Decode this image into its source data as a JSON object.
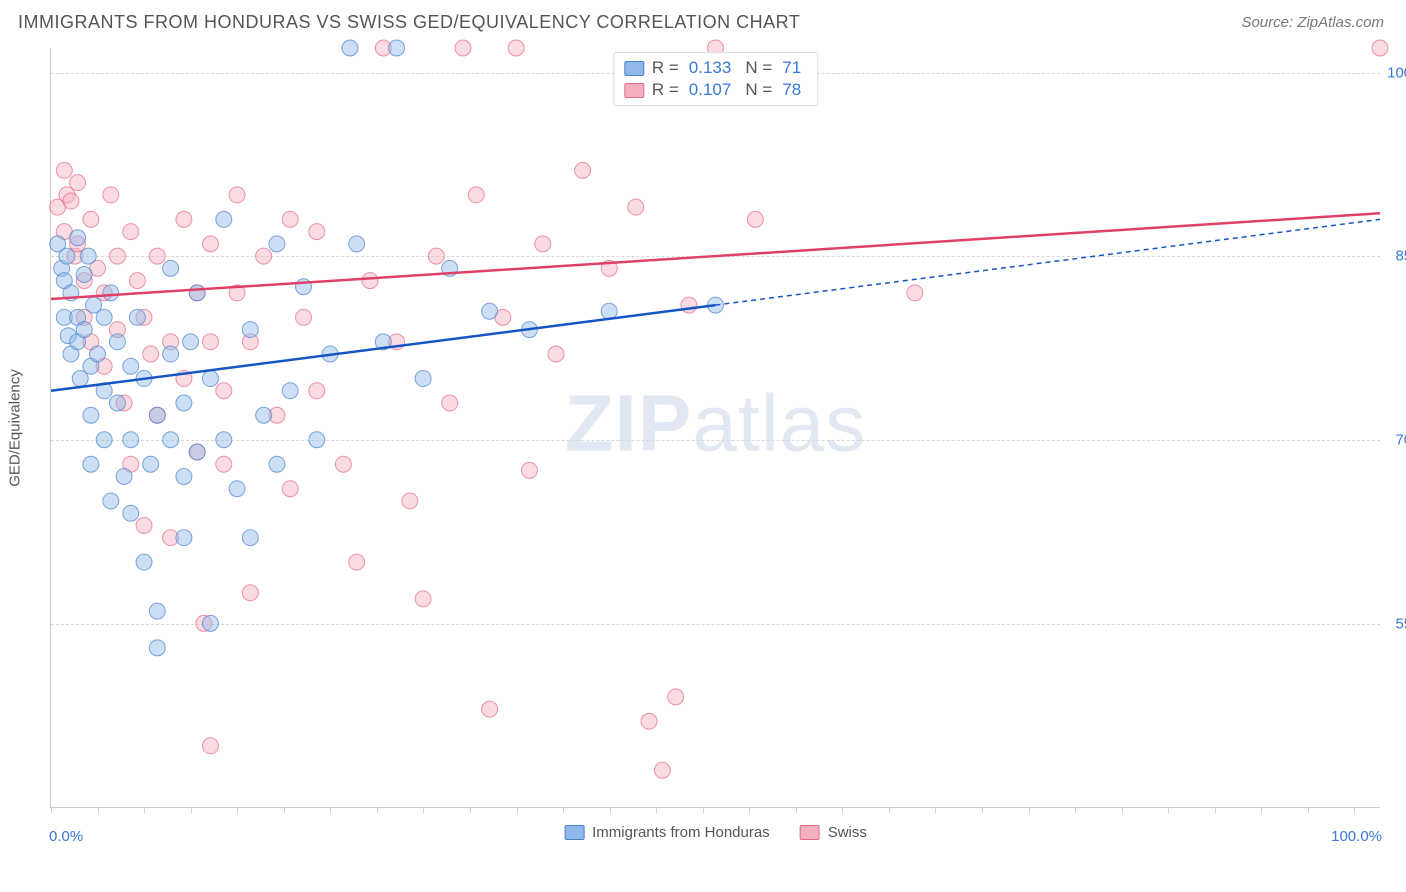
{
  "title": "IMMIGRANTS FROM HONDURAS VS SWISS GED/EQUIVALENCY CORRELATION CHART",
  "source": "Source: ZipAtlas.com",
  "watermark_zip": "ZIP",
  "watermark_atlas": "atlas",
  "yaxis_title": "GED/Equivalency",
  "chart": {
    "type": "scatter",
    "xlim": [
      0,
      100
    ],
    "ylim": [
      40,
      102
    ],
    "yticks": [
      {
        "value": 55,
        "label": "55.0%"
      },
      {
        "value": 70,
        "label": "70.0%"
      },
      {
        "value": 85,
        "label": "85.0%"
      },
      {
        "value": 100,
        "label": "100.0%"
      }
    ],
    "xtick_left": "0.0%",
    "xtick_right": "100.0%",
    "xtick_marks": [
      0,
      3.5,
      7,
      10.5,
      14,
      17.5,
      21,
      24.5,
      28,
      31.5,
      35,
      38.5,
      42,
      45.5,
      49,
      52.5,
      56,
      59.5,
      63,
      66.5,
      70,
      73.5,
      77,
      80.5,
      84,
      87.5,
      91,
      94.5,
      98
    ],
    "background_color": "#ffffff",
    "grid_color": "#d8d8d8",
    "marker_radius": 8,
    "marker_opacity": 0.45,
    "line_width": 2.5,
    "series": [
      {
        "name": "Immigrants from Honduras",
        "short_name": "honduras",
        "fill": "#8fb7e8",
        "stroke": "#4a81cc",
        "line_color": "#1556c4",
        "R_label": "R =",
        "R": "0.133",
        "N_label": "N =",
        "N": "71",
        "regression": {
          "x1": 0,
          "y1": 74,
          "x2": 50,
          "y2": 81,
          "x2_dash": 100,
          "y2_dash": 88
        },
        "points": [
          [
            0.5,
            86
          ],
          [
            0.8,
            84
          ],
          [
            1,
            83
          ],
          [
            1,
            80
          ],
          [
            1.2,
            85
          ],
          [
            1.3,
            78.5
          ],
          [
            1.5,
            82
          ],
          [
            1.5,
            77
          ],
          [
            2,
            86.5
          ],
          [
            2,
            80
          ],
          [
            2,
            78
          ],
          [
            2.2,
            75
          ],
          [
            2.5,
            83.5
          ],
          [
            2.5,
            79
          ],
          [
            2.8,
            85
          ],
          [
            3,
            76
          ],
          [
            3,
            72
          ],
          [
            3,
            68
          ],
          [
            3.2,
            81
          ],
          [
            3.5,
            77
          ],
          [
            4,
            80
          ],
          [
            4,
            74
          ],
          [
            4,
            70
          ],
          [
            4.5,
            82
          ],
          [
            4.5,
            65
          ],
          [
            5,
            78
          ],
          [
            5,
            73
          ],
          [
            5.5,
            67
          ],
          [
            6,
            76
          ],
          [
            6,
            70
          ],
          [
            6,
            64
          ],
          [
            6.5,
            80
          ],
          [
            7,
            75
          ],
          [
            7,
            60
          ],
          [
            7.5,
            68
          ],
          [
            8,
            72
          ],
          [
            8,
            56
          ],
          [
            8,
            53
          ],
          [
            9,
            84
          ],
          [
            9,
            77
          ],
          [
            9,
            70
          ],
          [
            10,
            67
          ],
          [
            10,
            73
          ],
          [
            10,
            62
          ],
          [
            10.5,
            78
          ],
          [
            11,
            82
          ],
          [
            11,
            69
          ],
          [
            12,
            75
          ],
          [
            12,
            55
          ],
          [
            13,
            88
          ],
          [
            13,
            70
          ],
          [
            14,
            66
          ],
          [
            15,
            79
          ],
          [
            15,
            62
          ],
          [
            16,
            72
          ],
          [
            17,
            86
          ],
          [
            17,
            68
          ],
          [
            18,
            74
          ],
          [
            19,
            82.5
          ],
          [
            20,
            70
          ],
          [
            21,
            77
          ],
          [
            22.5,
            102
          ],
          [
            23,
            86
          ],
          [
            25,
            78
          ],
          [
            26,
            102
          ],
          [
            28,
            75
          ],
          [
            30,
            84
          ],
          [
            33,
            80.5
          ],
          [
            36,
            79
          ],
          [
            42,
            80.5
          ],
          [
            50,
            81
          ]
        ]
      },
      {
        "name": "Swiss",
        "short_name": "swiss",
        "fill": "#f4b0bf",
        "stroke": "#e56b85",
        "line_color": "#e04068",
        "R_label": "R =",
        "R": "0.107",
        "N_label": "N =",
        "N": "78",
        "regression": {
          "x1": 0,
          "y1": 81.5,
          "x2": 100,
          "y2": 88.5
        },
        "points": [
          [
            0.5,
            89
          ],
          [
            1,
            92
          ],
          [
            1,
            87
          ],
          [
            1.2,
            90
          ],
          [
            1.5,
            89.5
          ],
          [
            1.8,
            85
          ],
          [
            2,
            91
          ],
          [
            2,
            86
          ],
          [
            2.5,
            83
          ],
          [
            2.5,
            80
          ],
          [
            3,
            88
          ],
          [
            3,
            78
          ],
          [
            3.5,
            84
          ],
          [
            4,
            82
          ],
          [
            4,
            76
          ],
          [
            4.5,
            90
          ],
          [
            5,
            85
          ],
          [
            5,
            79
          ],
          [
            5.5,
            73
          ],
          [
            6,
            87
          ],
          [
            6,
            68
          ],
          [
            6.5,
            83
          ],
          [
            7,
            80
          ],
          [
            7,
            63
          ],
          [
            7.5,
            77
          ],
          [
            8,
            85
          ],
          [
            8,
            72
          ],
          [
            9,
            78
          ],
          [
            9,
            62
          ],
          [
            10,
            88
          ],
          [
            10,
            75
          ],
          [
            11,
            82
          ],
          [
            11,
            69
          ],
          [
            11.5,
            55
          ],
          [
            12,
            86
          ],
          [
            12,
            78
          ],
          [
            12,
            45
          ],
          [
            13,
            74
          ],
          [
            13,
            68
          ],
          [
            14,
            82
          ],
          [
            14,
            90
          ],
          [
            15,
            78
          ],
          [
            15,
            57.5
          ],
          [
            16,
            85
          ],
          [
            17,
            72
          ],
          [
            18,
            88
          ],
          [
            18,
            66
          ],
          [
            19,
            80
          ],
          [
            20,
            87
          ],
          [
            20,
            74
          ],
          [
            22,
            68
          ],
          [
            23,
            60
          ],
          [
            24,
            83
          ],
          [
            25,
            102
          ],
          [
            26,
            78
          ],
          [
            27,
            65
          ],
          [
            28,
            57
          ],
          [
            29,
            85
          ],
          [
            30,
            73
          ],
          [
            31,
            102
          ],
          [
            32,
            90
          ],
          [
            33,
            48
          ],
          [
            34,
            80
          ],
          [
            35,
            102
          ],
          [
            36,
            67.5
          ],
          [
            37,
            86
          ],
          [
            38,
            77
          ],
          [
            40,
            92
          ],
          [
            42,
            84
          ],
          [
            44,
            89
          ],
          [
            45,
            47
          ],
          [
            46,
            43
          ],
          [
            47,
            49
          ],
          [
            48,
            81
          ],
          [
            50,
            102
          ],
          [
            53,
            88
          ],
          [
            65,
            82
          ],
          [
            100,
            102
          ]
        ]
      }
    ]
  },
  "bottom_legend": [
    {
      "swatch_fill": "#8fb7e8",
      "swatch_stroke": "#4a81cc",
      "label": "Immigrants from Honduras"
    },
    {
      "swatch_fill": "#f4b0bf",
      "swatch_stroke": "#e56b85",
      "label": "Swiss"
    }
  ]
}
